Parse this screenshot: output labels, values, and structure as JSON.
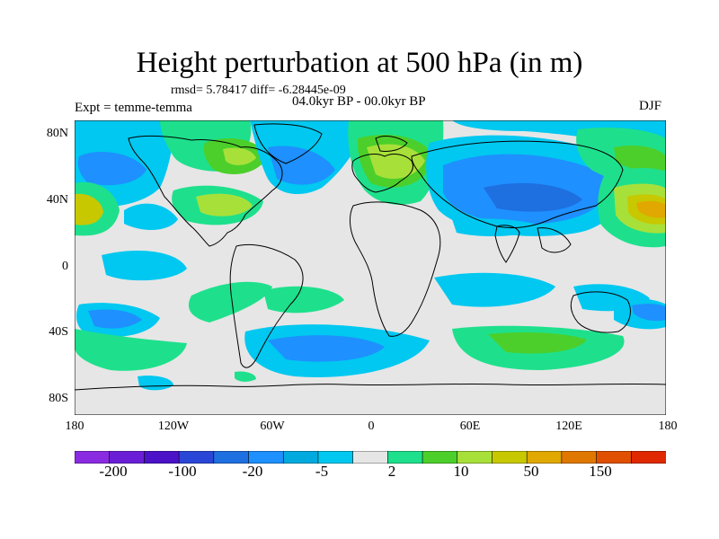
{
  "title": "Height perturbation at 500 hPa (in m)",
  "stats": "rmsd= 5.78417 diff= -6.28445e-09",
  "period": "04.0kyr BP - 00.0kyr BP",
  "experiment": "Expt = temme-temma",
  "season": "DJF",
  "lat_labels": [
    "80N",
    "40N",
    "0",
    "40S",
    "80S"
  ],
  "lon_labels": [
    "180",
    "120W",
    "60W",
    "0",
    "60E",
    "120E",
    "180"
  ],
  "colorbar": {
    "colors": [
      "#8a2be2",
      "#6a1fd6",
      "#4b12c8",
      "#2a46d6",
      "#1e6fe0",
      "#1e90ff",
      "#00aadf",
      "#00c8f0",
      "#e6e6e6",
      "#1ee08c",
      "#4ccf2a",
      "#a8e03a",
      "#c8c800",
      "#e0a800",
      "#e07800",
      "#e05000",
      "#e02800"
    ],
    "labels": [
      "-200",
      "-100",
      "-20",
      "-5",
      "2",
      "10",
      "50",
      "150"
    ]
  },
  "palette": {
    "neutral": "#e6e6e6",
    "light_blue": "#00c8f0",
    "mid_blue": "#1e90ff",
    "dark_blue": "#1e6fe0",
    "green": "#1ee08c",
    "dark_green": "#4ccf2a",
    "yellow_green": "#a8e03a",
    "yellow": "#c8c800",
    "orange": "#e0a800"
  }
}
